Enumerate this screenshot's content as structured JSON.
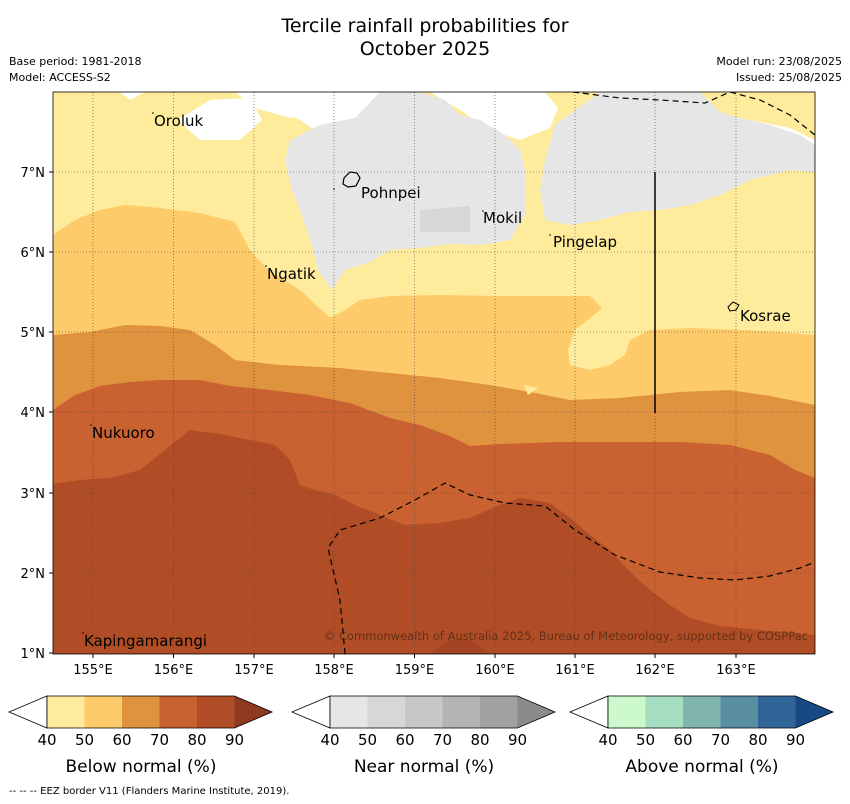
{
  "title": {
    "line1": "Tercile rainfall probabilities for",
    "line2": "October 2025"
  },
  "meta": {
    "base_period": "Base period: 1981-2018",
    "model": "Model: ACCESS-S2",
    "model_run": "Model run: 23/08/2025",
    "issued": "Issued: 25/08/2025"
  },
  "map": {
    "lon_ticks": [
      "155°E",
      "156°E",
      "157°E",
      "158°E",
      "159°E",
      "160°E",
      "161°E",
      "162°E",
      "163°E"
    ],
    "lat_ticks": [
      "7°N",
      "6°N",
      "5°N",
      "4°N",
      "3°N",
      "2°N",
      "1°N"
    ],
    "places": [
      {
        "name": "Oroluk"
      },
      {
        "name": "Pohnpei"
      },
      {
        "name": "Mokil"
      },
      {
        "name": "Pingelap"
      },
      {
        "name": "Ngatik"
      },
      {
        "name": "Kosrae"
      },
      {
        "name": "Nukuoro"
      },
      {
        "name": "Kapingamarangi"
      }
    ],
    "copyright": "© Commonwealth of Australia 2025, Bureau of Meteorology, supported by COSPPac"
  },
  "colorbars": [
    {
      "label": "Below normal (%)",
      "ticks": [
        "40",
        "50",
        "60",
        "70",
        "80",
        "90"
      ],
      "colors": [
        "#ffeb9c",
        "#fdcb6a",
        "#e0933f",
        "#c96230",
        "#b04d26",
        "#8f3a1f"
      ]
    },
    {
      "label": "Near normal (%)",
      "ticks": [
        "40",
        "50",
        "60",
        "70",
        "80",
        "90"
      ],
      "colors": [
        "#e6e6e6",
        "#d7d7d7",
        "#c8c8c8",
        "#b4b4b4",
        "#a1a1a1",
        "#8a8a8a"
      ]
    },
    {
      "label": "Above normal (%)",
      "ticks": [
        "40",
        "50",
        "60",
        "70",
        "80",
        "90"
      ],
      "colors": [
        "#ccfacc",
        "#a6dcc0",
        "#80b5ae",
        "#5a8fa1",
        "#306598",
        "#174a82"
      ]
    }
  ],
  "footer": "--  --  -- EEZ border V11 (Flanders Marine Institute, 2019)."
}
